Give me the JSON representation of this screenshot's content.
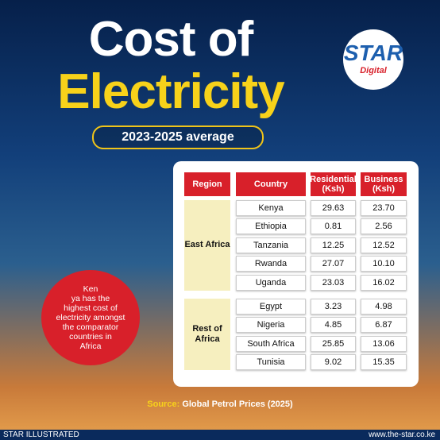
{
  "header": {
    "title_line1": "Cost of",
    "title_line2": "Electricity",
    "subtitle": "2023-2025 average"
  },
  "logo": {
    "name": "STAR",
    "tagline": "Digital"
  },
  "table": {
    "columns": [
      "Region",
      "Country",
      "Residential (Ksh)",
      "Business (Ksh)"
    ],
    "groups": [
      {
        "region": "East Africa",
        "rows": [
          [
            "Kenya",
            "29.63",
            "23.70"
          ],
          [
            "Ethiopia",
            "0.81",
            "2.56"
          ],
          [
            "Tanzania",
            "12.25",
            "12.52"
          ],
          [
            "Rwanda",
            "27.07",
            "10.10"
          ],
          [
            "Uganda",
            "23.03",
            "16.02"
          ]
        ]
      },
      {
        "region": "Rest of Africa",
        "rows": [
          [
            "Egypt",
            "3.23",
            "4.98"
          ],
          [
            "Nigeria",
            "4.85",
            "6.87"
          ],
          [
            "South Africa",
            "25.85",
            "13.06"
          ],
          [
            "Tunisia",
            "9.02",
            "15.35"
          ]
        ]
      }
    ]
  },
  "callout": {
    "lines": [
      "Ken",
      "ya has the",
      "highest cost of",
      "electricity amongst",
      "the comparator",
      "countries in",
      "Africa"
    ]
  },
  "source": {
    "label": "Source:",
    "text": "Global Petrol Prices (2025)"
  },
  "footer": {
    "left": "STAR ILLUSTRATED",
    "right": "www.the-star.co.ke"
  }
}
